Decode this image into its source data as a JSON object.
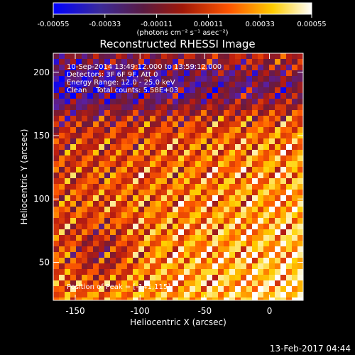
{
  "colorbar": {
    "ticks": [
      "-0.00055",
      "-0.00033",
      "-0.00011",
      "0.00011",
      "0.00033",
      "0.00055"
    ],
    "unit_label": "(photons cm⁻² s⁻¹ asec⁻²)",
    "stops": [
      "#0000ff",
      "#5a1fa0",
      "#6b1a3a",
      "#b81c10",
      "#ff5a00",
      "#ffd200",
      "#ffffff"
    ]
  },
  "chart_data": {
    "type": "heatmap",
    "title": "Reconstructed RHESSI Image",
    "xlabel": "Heliocentric X (arcsec)",
    "ylabel": "Heliocentric Y (arcsec)",
    "xlim": [
      -167,
      26
    ],
    "ylim": [
      20,
      215
    ],
    "xticks": [
      -150,
      -100,
      -50,
      0
    ],
    "yticks": [
      50,
      100,
      150,
      200
    ],
    "colorbar_range": [
      -0.00055,
      0.00055
    ],
    "annotations": [
      "10-Sep-2014 13:49:12.000 to 13:59:12.000",
      "Detectors: 3F 6F 9F, Att 0",
      "Energy Range: 12.0 - 25.0 keV",
      "Clean    Total counts: 5.58E+03"
    ],
    "peak_label": "Position of Peak = [-141,115]",
    "peak_position": [
      -141,
      115
    ]
  },
  "footer_timestamp": "13-Feb-2017 04:44"
}
